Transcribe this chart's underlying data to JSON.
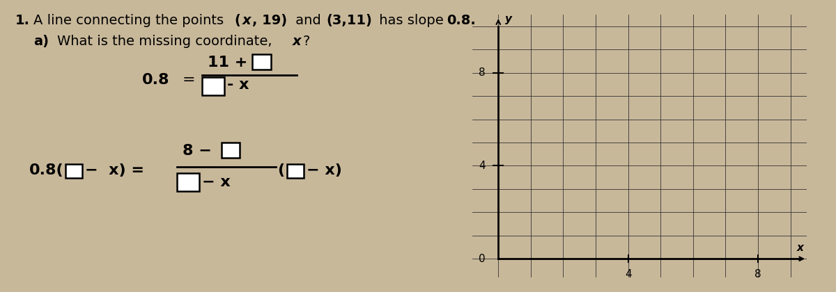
{
  "bg_color": "#c8b89a",
  "paper_color": "#e8e2d8",
  "title_line": "1.  A line connecting the points (x, 19) and (3,11) has slope 0.8.",
  "sub_line": "a)  What is the missing coordinate, x?",
  "eq1_left": "0.8",
  "eq1_eq": "=",
  "eq2_left": "0.8(",
  "grid_labels_x": [
    "0",
    "4",
    "8"
  ],
  "grid_labels_y": [
    "8",
    "4"
  ],
  "grid_x_label": "x",
  "grid_y_label": "y"
}
